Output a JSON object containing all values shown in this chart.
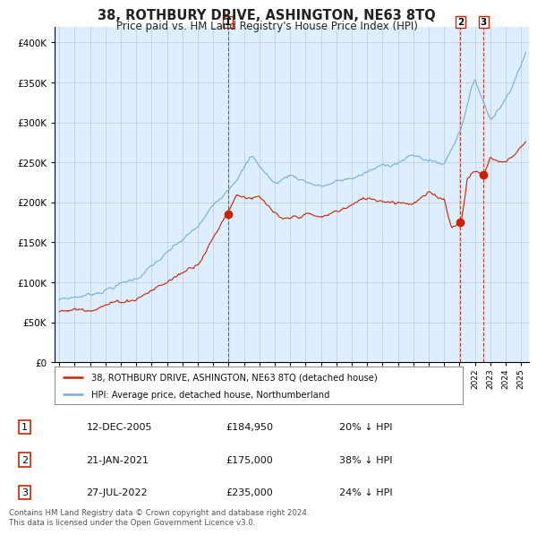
{
  "title": "38, ROTHBURY DRIVE, ASHINGTON, NE63 8TQ",
  "subtitle": "Price paid vs. HM Land Registry's House Price Index (HPI)",
  "legend_line1": "38, ROTHBURY DRIVE, ASHINGTON, NE63 8TQ (detached house)",
  "legend_line2": "HPI: Average price, detached house, Northumberland",
  "footnote": "Contains HM Land Registry data © Crown copyright and database right 2024.\nThis data is licensed under the Open Government Licence v3.0.",
  "table": [
    {
      "num": "1",
      "date": "12-DEC-2005",
      "price": "£184,950",
      "pct": "20% ↓ HPI"
    },
    {
      "num": "2",
      "date": "21-JAN-2021",
      "price": "£175,000",
      "pct": "38% ↓ HPI"
    },
    {
      "num": "3",
      "date": "27-JUL-2022",
      "price": "£235,000",
      "pct": "24% ↓ HPI"
    }
  ],
  "sale_dates_decimal": [
    2005.95,
    2021.055,
    2022.565
  ],
  "sale_prices": [
    184950,
    175000,
    235000
  ],
  "hpi_color": "#7aadd4",
  "price_color": "#cc2200",
  "bg_color": "#ddeeff",
  "plot_bg": "#ffffff",
  "grid_color": "#c0c8d8",
  "ylim": [
    0,
    420000
  ],
  "xlim_start": 1994.7,
  "xlim_end": 2025.5
}
